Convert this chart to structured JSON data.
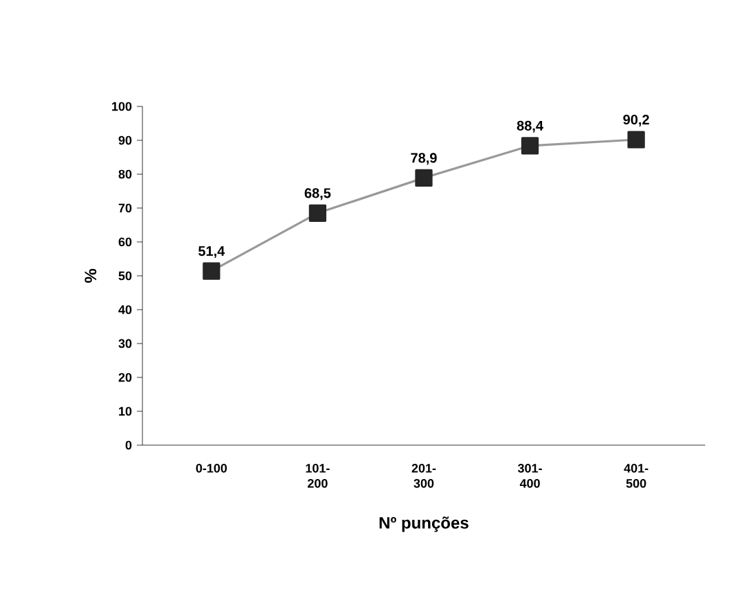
{
  "chart_data": {
    "type": "line",
    "xlabel": "Nº punções",
    "ylabel": "%",
    "categories": [
      "0-100",
      "101-200",
      "201-300",
      "301-400",
      "401-500"
    ],
    "series": [
      {
        "color": "#999999",
        "values": [
          51.4,
          68.5,
          78.9,
          88.4,
          90.2
        ],
        "value_labels": [
          "51,4",
          "68,5",
          "78,9",
          "88,4",
          "90,2"
        ]
      }
    ],
    "ylim": [
      0,
      100
    ],
    "yticks": [
      0,
      10,
      20,
      30,
      40,
      50,
      60,
      70,
      80,
      90,
      100
    ],
    "marker": "square",
    "line_style": "solid"
  }
}
